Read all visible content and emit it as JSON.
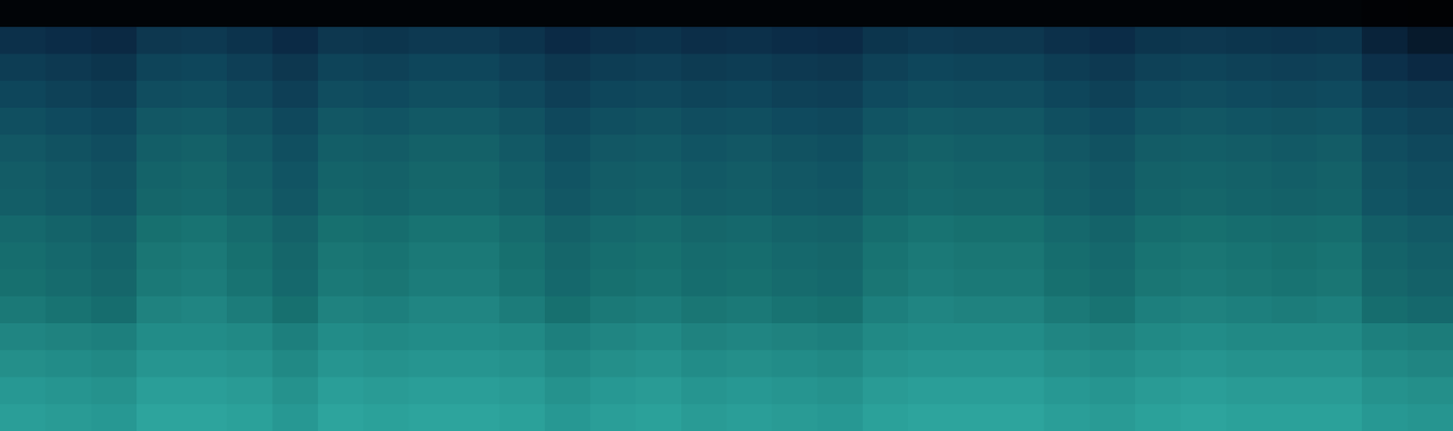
{
  "chart_data": {
    "type": "heatmap",
    "tick_labels": false,
    "zlim": [
      0,
      100
    ],
    "cells": [
      [
        6,
        6,
        6,
        6,
        6,
        6,
        6,
        6,
        6,
        6,
        6,
        6,
        6,
        6,
        6,
        6,
        6,
        6,
        6,
        6,
        6,
        6,
        6,
        6,
        6,
        6,
        6,
        6,
        6,
        6,
        4,
        3
      ],
      [
        38,
        36,
        34,
        41,
        42,
        39,
        35,
        41,
        40,
        42,
        42,
        39,
        35,
        38,
        39,
        37,
        38,
        36,
        35,
        40,
        42,
        41,
        41,
        38,
        36,
        40,
        41,
        40,
        39,
        40,
        30,
        24
      ],
      [
        44,
        42,
        40,
        47,
        48,
        45,
        41,
        47,
        46,
        48,
        48,
        45,
        41,
        44,
        45,
        43,
        44,
        42,
        41,
        46,
        48,
        47,
        47,
        44,
        42,
        46,
        47,
        46,
        45,
        46,
        38,
        34
      ],
      [
        48,
        46,
        44,
        51,
        52,
        49,
        45,
        51,
        50,
        52,
        52,
        49,
        45,
        48,
        49,
        47,
        48,
        46,
        45,
        50,
        52,
        51,
        51,
        48,
        46,
        50,
        51,
        50,
        49,
        50,
        44,
        42
      ],
      [
        52,
        50,
        48,
        55,
        56,
        53,
        49,
        55,
        54,
        56,
        56,
        53,
        49,
        52,
        53,
        51,
        52,
        50,
        49,
        54,
        56,
        55,
        55,
        52,
        50,
        54,
        55,
        54,
        53,
        54,
        48,
        46
      ],
      [
        55,
        53,
        51,
        58,
        59,
        56,
        52,
        58,
        57,
        59,
        59,
        56,
        52,
        55,
        56,
        54,
        55,
        53,
        52,
        57,
        59,
        58,
        58,
        55,
        53,
        57,
        58,
        57,
        56,
        57,
        51,
        49
      ],
      [
        57,
        55,
        53,
        60,
        61,
        58,
        54,
        60,
        59,
        61,
        61,
        58,
        54,
        57,
        58,
        56,
        57,
        55,
        54,
        59,
        61,
        60,
        60,
        57,
        55,
        59,
        60,
        59,
        58,
        59,
        53,
        51
      ],
      [
        58,
        56,
        54,
        61,
        62,
        59,
        55,
        61,
        60,
        62,
        62,
        59,
        55,
        58,
        59,
        57,
        58,
        56,
        55,
        60,
        62,
        61,
        61,
        58,
        56,
        60,
        61,
        60,
        59,
        60,
        54,
        52
      ],
      [
        62,
        60,
        58,
        65,
        66,
        63,
        59,
        65,
        64,
        66,
        66,
        63,
        59,
        62,
        63,
        61,
        62,
        60,
        59,
        64,
        66,
        65,
        65,
        62,
        60,
        64,
        65,
        64,
        63,
        64,
        58,
        56
      ],
      [
        64,
        62,
        60,
        67,
        68,
        65,
        61,
        67,
        66,
        68,
        68,
        65,
        61,
        64,
        65,
        63,
        64,
        62,
        61,
        66,
        68,
        67,
        67,
        64,
        62,
        66,
        67,
        66,
        65,
        66,
        60,
        58
      ],
      [
        65,
        63,
        61,
        68,
        69,
        66,
        62,
        68,
        67,
        69,
        69,
        66,
        62,
        65,
        66,
        64,
        65,
        63,
        62,
        67,
        69,
        68,
        68,
        65,
        63,
        67,
        68,
        67,
        66,
        67,
        61,
        59
      ],
      [
        68,
        66,
        64,
        71,
        72,
        69,
        65,
        71,
        70,
        72,
        72,
        69,
        65,
        68,
        69,
        67,
        68,
        66,
        65,
        70,
        72,
        71,
        71,
        68,
        66,
        70,
        71,
        70,
        69,
        70,
        64,
        62
      ],
      [
        72,
        71,
        70,
        74,
        74,
        73,
        70,
        74,
        73,
        74,
        74,
        73,
        70,
        72,
        73,
        71,
        72,
        71,
        70,
        73,
        74,
        74,
        74,
        72,
        71,
        73,
        74,
        73,
        73,
        73,
        70,
        69
      ],
      [
        75,
        74,
        73,
        77,
        77,
        76,
        73,
        77,
        76,
        77,
        77,
        76,
        73,
        75,
        76,
        74,
        75,
        74,
        73,
        76,
        77,
        77,
        77,
        75,
        74,
        76,
        77,
        76,
        76,
        76,
        73,
        72
      ],
      [
        78,
        77,
        76,
        80,
        80,
        79,
        76,
        80,
        79,
        80,
        80,
        79,
        76,
        78,
        79,
        77,
        78,
        77,
        76,
        79,
        80,
        80,
        80,
        78,
        77,
        79,
        80,
        79,
        79,
        79,
        76,
        75
      ],
      [
        80,
        79,
        78,
        82,
        82,
        81,
        78,
        82,
        81,
        82,
        82,
        81,
        78,
        80,
        81,
        79,
        80,
        79,
        78,
        81,
        82,
        82,
        82,
        80,
        79,
        81,
        82,
        81,
        81,
        81,
        78,
        77
      ]
    ]
  }
}
